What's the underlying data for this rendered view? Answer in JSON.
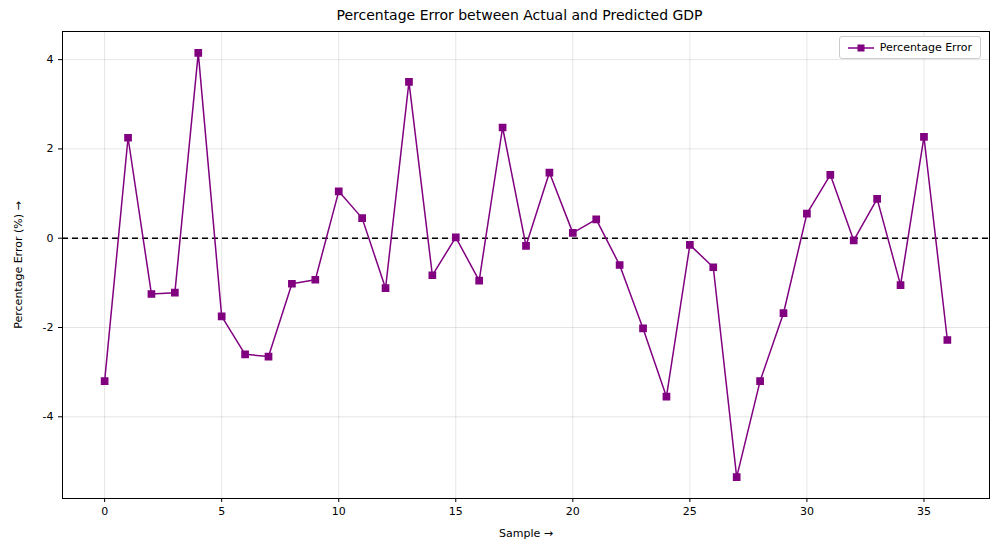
{
  "chart_data": {
    "type": "line",
    "title": "Percentage Error between Actual and Predicted GDP",
    "x_label": "Sample",
    "y_label": "Percentage Error (%)",
    "x": [
      0,
      1,
      2,
      3,
      4,
      5,
      6,
      7,
      8,
      9,
      10,
      11,
      12,
      13,
      14,
      15,
      16,
      17,
      18,
      19,
      20,
      21,
      22,
      23,
      24,
      25,
      26,
      27,
      28,
      29,
      30,
      31,
      32,
      33,
      34,
      35,
      36
    ],
    "series": [
      {
        "name": "Percentage Error",
        "color": "#800080",
        "marker": "square",
        "line_style": "solid",
        "values": [
          -3.2,
          2.25,
          -1.25,
          -1.22,
          4.15,
          -1.75,
          -2.6,
          -2.65,
          -1.02,
          -0.93,
          1.05,
          0.45,
          -1.12,
          3.5,
          -0.83,
          0.02,
          -0.95,
          2.48,
          -0.17,
          1.47,
          0.12,
          0.42,
          -0.6,
          -2.02,
          -3.55,
          -0.15,
          -0.65,
          -5.35,
          -3.2,
          -1.68,
          0.55,
          1.42,
          -0.05,
          0.88,
          -1.05,
          2.27,
          -2.28
        ]
      }
    ],
    "xlim": [
      -1.8,
      37.8
    ],
    "ylim": [
      -5.83,
      4.63
    ],
    "xticks": [
      0,
      5,
      10,
      15,
      20,
      25,
      30,
      35
    ],
    "yticks": [
      -4,
      -2,
      0,
      2,
      4
    ],
    "reference_line": {
      "y": 0,
      "color": "#000000",
      "line_style": "dashed"
    },
    "grid": true,
    "legend": "upper right"
  }
}
